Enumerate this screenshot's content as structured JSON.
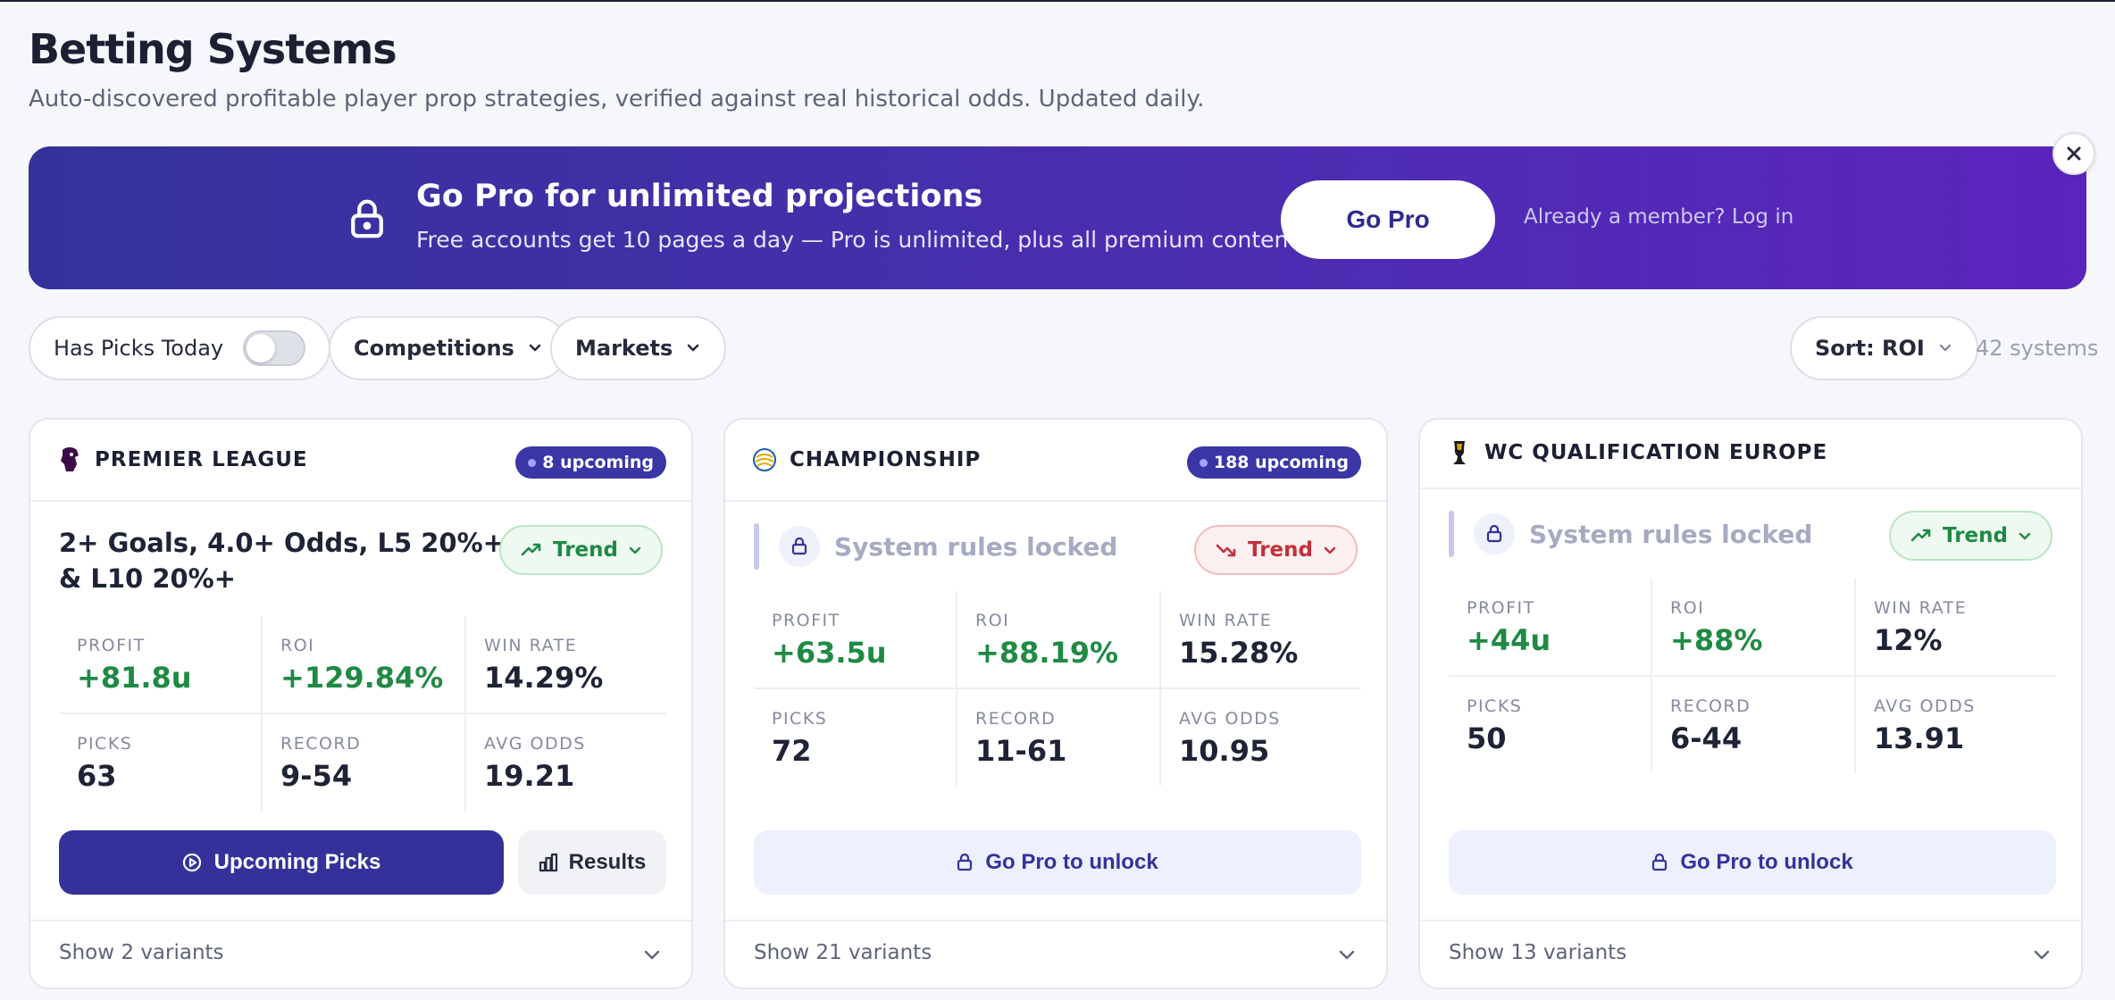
{
  "header": {
    "title": "Betting Systems",
    "subtitle": "Auto-discovered profitable player prop strategies, verified against real historical odds. Updated daily."
  },
  "banner": {
    "title": "Go Pro for unlimited projections",
    "subtitle": "Free accounts get 10 pages a day — Pro is unlimited, plus all premium content",
    "cta_label": "Go Pro",
    "login_text": "Already a member? Log in",
    "close_icon": "close-icon"
  },
  "filters": {
    "has_picks_label": "Has Picks Today",
    "has_picks_on": false,
    "competitions_label": "Competitions",
    "markets_label": "Markets",
    "sort_label": "Sort: ROI",
    "systems_count": "42 systems"
  },
  "cards": [
    {
      "competition": "PREMIER LEAGUE",
      "upcoming": "8 upcoming",
      "locked": false,
      "title": "2+ Goals, 4.0+ Odds, L5 20%+ & L10 20%+",
      "trend": {
        "label": "Trend",
        "direction": "up",
        "color": "#1f8a44"
      },
      "stats": {
        "profit_label": "PROFIT",
        "profit": "+81.8u",
        "roi_label": "ROI",
        "roi": "+129.84%",
        "winrate_label": "WIN RATE",
        "winrate": "14.29%",
        "picks_label": "PICKS",
        "picks": "63",
        "record_label": "RECORD",
        "record": "9-54",
        "avgodds_label": "AVG ODDS",
        "avgodds": "19.21"
      },
      "primary_label": "Upcoming Picks",
      "results_label": "Results",
      "variants": "Show 2 variants"
    },
    {
      "competition": "CHAMPIONSHIP",
      "upcoming": "188 upcoming",
      "locked": true,
      "locked_text": "System rules locked",
      "trend": {
        "label": "Trend",
        "direction": "down",
        "color": "#c2303a"
      },
      "stats": {
        "profit_label": "PROFIT",
        "profit": "+63.5u",
        "roi_label": "ROI",
        "roi": "+88.19%",
        "winrate_label": "WIN RATE",
        "winrate": "15.28%",
        "picks_label": "PICKS",
        "picks": "72",
        "record_label": "RECORD",
        "record": "11-61",
        "avgodds_label": "AVG ODDS",
        "avgodds": "10.95"
      },
      "unlock_label": "Go Pro to unlock",
      "variants": "Show 21 variants"
    },
    {
      "competition": "WC QUALIFICATION EUROPE",
      "upcoming": "",
      "locked": true,
      "locked_text": "System rules locked",
      "trend": {
        "label": "Trend",
        "direction": "up",
        "color": "#1f8a44"
      },
      "stats": {
        "profit_label": "PROFIT",
        "profit": "+44u",
        "roi_label": "ROI",
        "roi": "+88%",
        "winrate_label": "WIN RATE",
        "winrate": "12%",
        "picks_label": "PICKS",
        "picks": "50",
        "record_label": "RECORD",
        "record": "6-44",
        "avgodds_label": "AVG ODDS",
        "avgodds": "13.91"
      },
      "unlock_label": "Go Pro to unlock",
      "variants": "Show 13 variants"
    }
  ],
  "colors": {
    "primary": "#34329a",
    "positive": "#1f8a44",
    "negative": "#c2303a"
  }
}
